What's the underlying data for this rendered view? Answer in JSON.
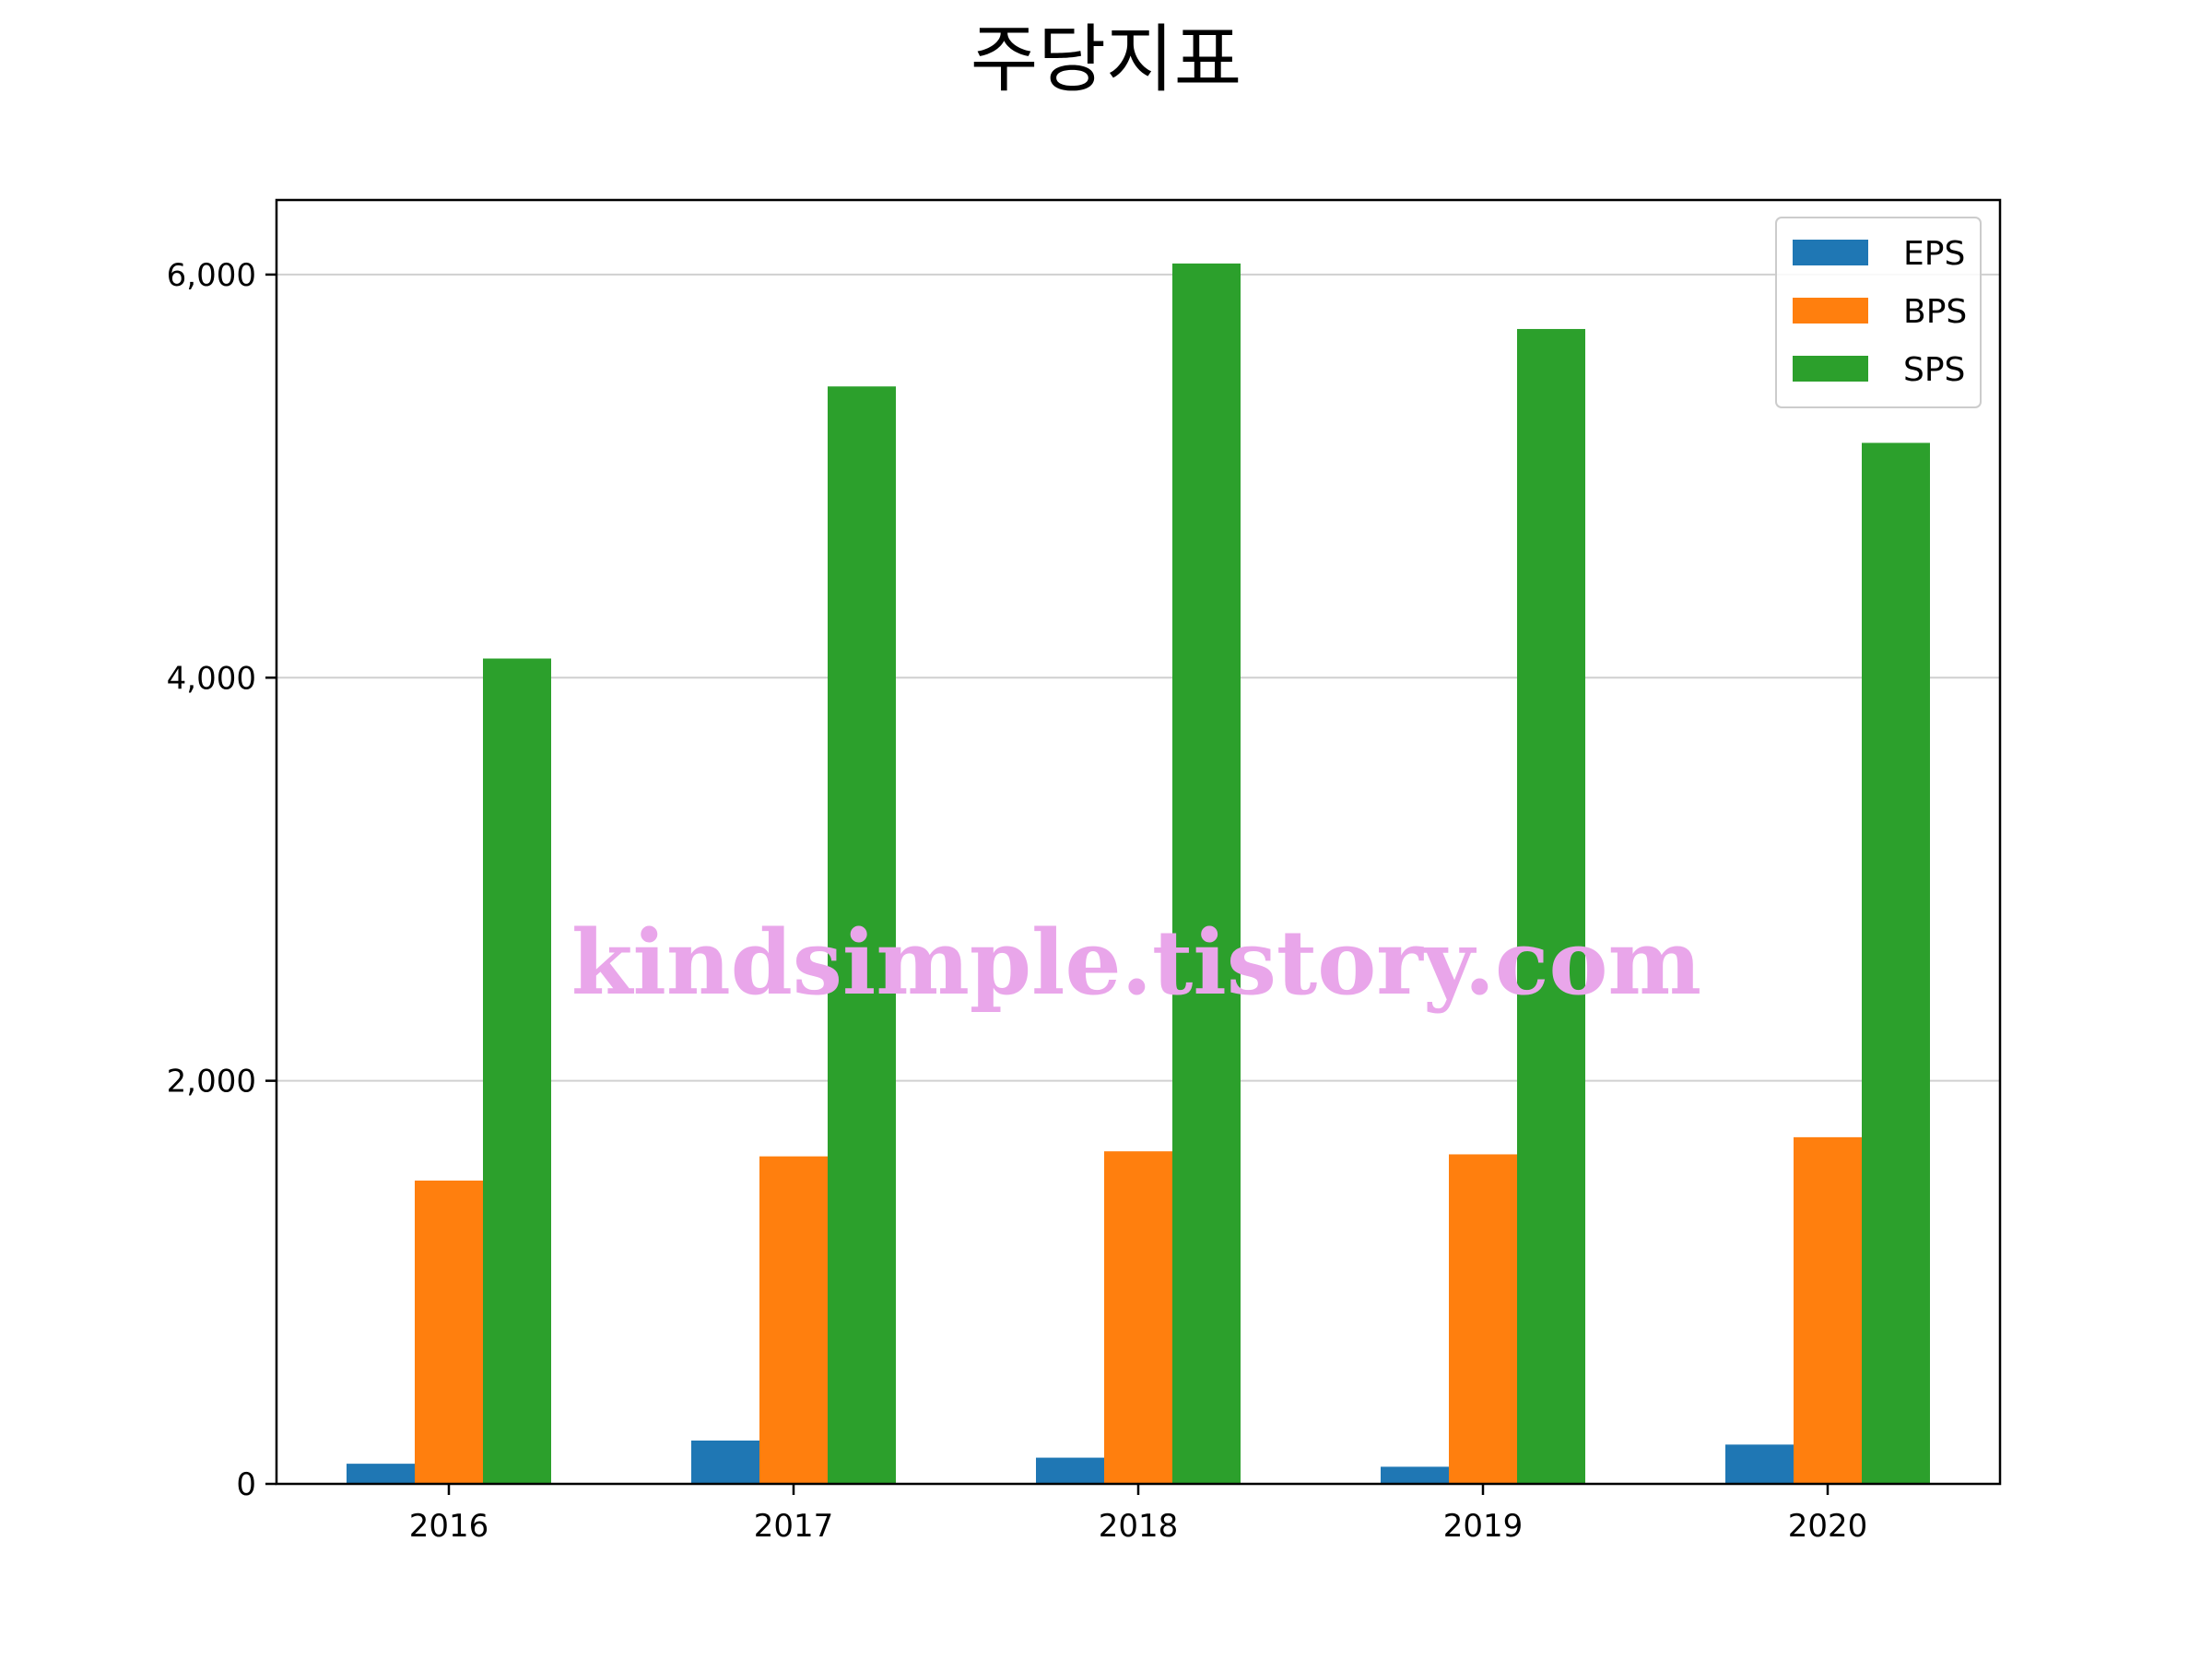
{
  "chart_data": {
    "type": "bar",
    "title": "주당지표",
    "xlabel": "",
    "ylabel": "",
    "categories": [
      "2016",
      "2017",
      "2018",
      "2019",
      "2020"
    ],
    "series": [
      {
        "name": "EPS",
        "color": "#1f77b4",
        "values": [
          100,
          215,
          130,
          85,
          195
        ]
      },
      {
        "name": "BPS",
        "color": "#ff7f0e",
        "values": [
          1505,
          1625,
          1650,
          1635,
          1720
        ]
      },
      {
        "name": "SPS",
        "color": "#2ca02c",
        "values": [
          4095,
          5445,
          6055,
          5730,
          5165
        ]
      }
    ],
    "ylim": [
      0,
      6370
    ],
    "yticks": [
      0,
      2000,
      4000,
      6000
    ],
    "ytick_labels": [
      "0",
      "2,000",
      "4,000",
      "6,000"
    ],
    "grid": "y",
    "legend": "top-right",
    "watermark": "kindsimple.tistory.com"
  }
}
